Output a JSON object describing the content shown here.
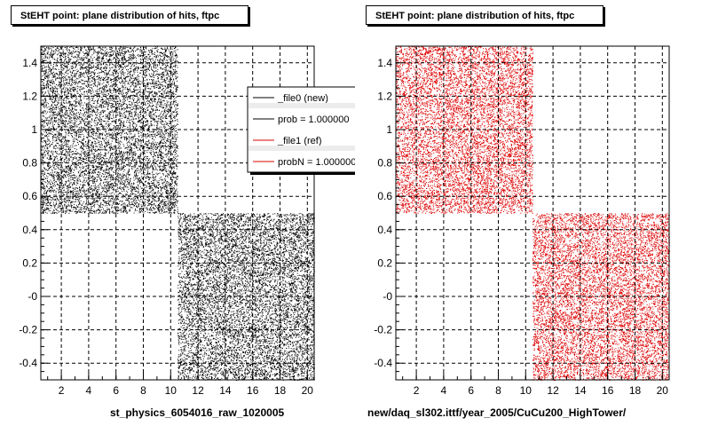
{
  "colors": {
    "new": "#000000",
    "ref": "#dd0000",
    "grid": "#000000",
    "frame": "#000000"
  },
  "footer": {
    "left_corner": ""
  },
  "chart_data": [
    {
      "type": "scatter",
      "title": "StEHT point: plane distribution of hits, ftpc",
      "xlabel": "st_physics_6054016_raw_1020005",
      "ylabel": "",
      "xlim": [
        0.5,
        20.5
      ],
      "ylim": [
        -0.5,
        1.5
      ],
      "xticks": [
        2,
        4,
        6,
        8,
        10,
        12,
        14,
        16,
        18,
        20
      ],
      "yticks": [
        -0.4,
        -0.2,
        0,
        0.2,
        0.4,
        0.6,
        0.8,
        1,
        1.2,
        1.4
      ],
      "ytick_labels": [
        "-0.4",
        "-0.2",
        "-0",
        "0.2",
        "0.4",
        "0.6",
        "0.8",
        "1",
        "1.2",
        "1.4"
      ],
      "grid": true,
      "legend": {
        "placement": "top-right",
        "entries": [
          {
            "label": "_file0 (new)",
            "color": "#000000"
          },
          {
            "label": "prob = 1.000000",
            "color": "#000000"
          },
          {
            "label": "_file1 (ref)",
            "color": "#dd0000"
          },
          {
            "label": "probN = 1.000000",
            "color": "#dd0000"
          }
        ]
      },
      "series": [
        {
          "name": "_file0 (new)",
          "color": "#000000",
          "regions": [
            {
              "x": [
                0.5,
                10.5
              ],
              "y": [
                0.5,
                1.5
              ]
            },
            {
              "x": [
                10.5,
                20.5
              ],
              "y": [
                -0.5,
                0.5
              ]
            }
          ]
        }
      ]
    },
    {
      "type": "scatter",
      "title": "StEHT point: plane distribution of hits, ftpc",
      "xlabel": "new/daq_sl302.ittf/year_2005/CuCu200_HighTower/",
      "ylabel": "",
      "xlim": [
        0.5,
        20.5
      ],
      "ylim": [
        -0.5,
        1.5
      ],
      "xticks": [
        2,
        4,
        6,
        8,
        10,
        12,
        14,
        16,
        18,
        20
      ],
      "yticks": [
        -0.4,
        -0.2,
        0,
        0.2,
        0.4,
        0.6,
        0.8,
        1,
        1.2,
        1.4
      ],
      "ytick_labels": [
        "-0.4",
        "-0.2",
        "-0",
        "0.2",
        "0.4",
        "0.6",
        "0.8",
        "1",
        "1.2",
        "1.4"
      ],
      "grid": true,
      "series": [
        {
          "name": "_file1 (ref)",
          "color": "#dd0000",
          "regions": [
            {
              "x": [
                0.5,
                10.5
              ],
              "y": [
                0.5,
                1.5
              ]
            },
            {
              "x": [
                10.5,
                20.5
              ],
              "y": [
                -0.5,
                0.5
              ]
            }
          ]
        }
      ]
    }
  ]
}
